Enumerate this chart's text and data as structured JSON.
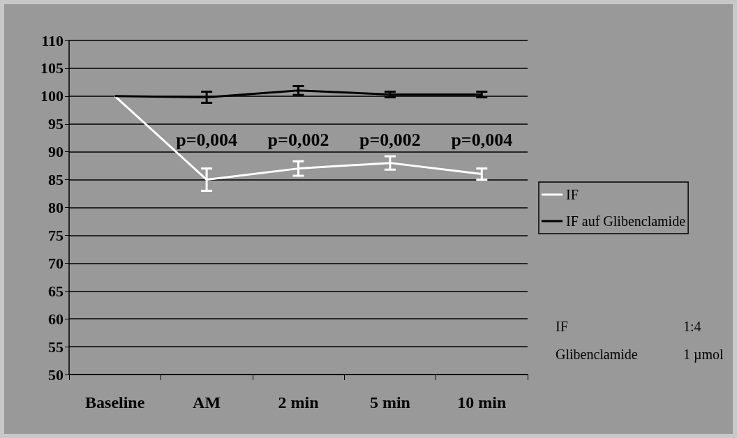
{
  "chart_data": {
    "type": "line",
    "categories": [
      "Baseline",
      "AM",
      "2 min",
      "5 min",
      "10 min"
    ],
    "series": [
      {
        "name": "IF",
        "color": "#ffffff",
        "values": [
          100,
          85,
          87,
          88,
          86
        ],
        "errors": [
          null,
          2,
          1.3,
          1.2,
          1
        ]
      },
      {
        "name": "IF auf Glibenclamide",
        "color": "#000000",
        "values": [
          100,
          99.8,
          101,
          100.3,
          100.3
        ],
        "errors": [
          null,
          1,
          0.8,
          0.5,
          0.5
        ]
      }
    ],
    "ylim": [
      50,
      110
    ],
    "yticks": [
      50,
      55,
      60,
      65,
      70,
      75,
      80,
      85,
      90,
      95,
      100,
      105,
      110
    ],
    "grid": "y",
    "legend": "right",
    "marker": "none",
    "line_style": "solid",
    "annotations": [
      "p=0,004",
      "p=0,002",
      "p=0,002",
      "p=0,004",
      "IF",
      "1:4",
      "Glibenclamide",
      "1 µmol"
    ]
  }
}
